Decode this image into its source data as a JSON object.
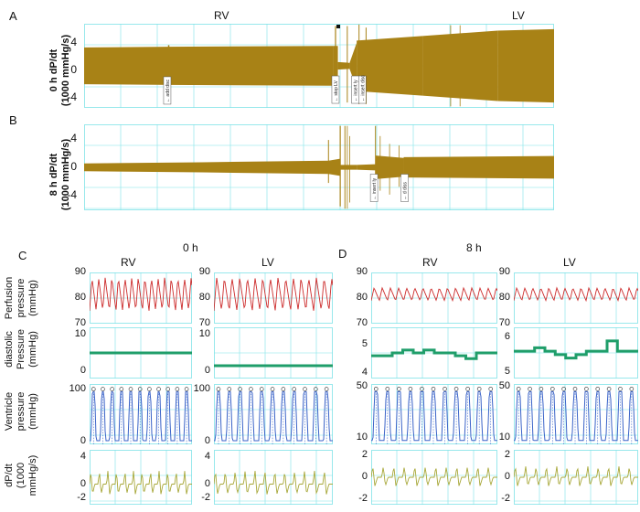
{
  "panels": {
    "A": {
      "letter": "A",
      "ylabel_lines": [
        "0 h dP/dt",
        "(1000 mmHg/s)"
      ],
      "yticks": [
        "4",
        "0",
        "-4"
      ],
      "yticks_values": [
        4,
        0,
        -4
      ],
      "ylim": [
        -5.5,
        5.5
      ],
      "rv_label": "RV",
      "lv_label": "LV",
      "event_marks": [
        "← add disc",
        "← stop LV",
        "← insert ly",
        "← insert disc"
      ]
    },
    "B": {
      "letter": "B",
      "ylabel_lines": [
        "8 h dP/dt",
        "(1000 mmHg/s)"
      ],
      "yticks": [
        "4",
        "0",
        "-4"
      ],
      "yticks_values": [
        4,
        0,
        -4
      ],
      "ylim": [
        -5.5,
        5.5
      ],
      "event_marks": [
        "← insert ly",
        "← d diss"
      ]
    },
    "C": {
      "letter": "C",
      "time_label": "0 h",
      "col_labels": [
        "RV",
        "LV"
      ]
    },
    "D": {
      "letter": "D",
      "time_label": "8 h",
      "col_labels": [
        "RV",
        "LV"
      ]
    }
  },
  "row_labels": {
    "perfusion": [
      "Perfusion",
      "pressure",
      "(mmHg)"
    ],
    "diastolic": [
      "diastolic",
      "Pressure",
      "(mmHg)"
    ],
    "ventricle": [
      "Ventricle",
      "pressure",
      "(mmHg)"
    ],
    "dpdt": [
      "dP/dt",
      "(1000",
      "mmHg/s)"
    ]
  },
  "colors": {
    "gold": "#a88216",
    "grid": "#7fe3e8",
    "red": "#cc2b2b",
    "green": "#1f9e6a",
    "blue": "#3a63c8",
    "olive": "#a8a83a"
  },
  "chart_data": [
    {
      "type": "line",
      "panel": "A",
      "title": "",
      "ylabel": "0 h dP/dt (1000 mmHg/s)",
      "ylim": [
        -5.5,
        5.5
      ],
      "series": [
        {
          "values": [
            2.5,
            2.6,
            2.5,
            2.6,
            2.5,
            0.4,
            4.8,
            5.2,
            4.9,
            5.1
          ]
        }
      ]
    },
    {
      "type": "line",
      "panel": "B",
      "title": "",
      "ylabel": "8 h dP/dt (1000 mmHg/s)",
      "ylim": [
        -5.5,
        5.5
      ],
      "series": [
        {
          "values": [
            0.5,
            0.6,
            0.8,
            1.0,
            0.3,
            3.0,
            1.0,
            1.4,
            1.5,
            1.5
          ]
        }
      ]
    },
    {
      "type": "line",
      "panel": "C",
      "column": "RV",
      "row": "Perfusion pressure (mmHg)",
      "ylim": [
        70,
        90
      ],
      "yticks": [
        90,
        80,
        70
      ],
      "series": [
        {
          "values": [
            75,
            88,
            75,
            88,
            75,
            88,
            75,
            88,
            75,
            88,
            75,
            88,
            75,
            88,
            75,
            88
          ]
        }
      ]
    },
    {
      "type": "line",
      "panel": "C",
      "column": "LV",
      "row": "Perfusion pressure (mmHg)",
      "ylim": [
        70,
        90
      ],
      "yticks": [
        90,
        80,
        70
      ],
      "series": [
        {
          "values": [
            75,
            88,
            75,
            88,
            75,
            88,
            75,
            88,
            75,
            88,
            75,
            88,
            75,
            88,
            75,
            88
          ]
        }
      ]
    },
    {
      "type": "line",
      "panel": "D",
      "column": "RV",
      "row": "Perfusion pressure (mmHg)",
      "ylim": [
        70,
        90
      ],
      "yticks": [
        90,
        80,
        70
      ],
      "series": [
        {
          "values": [
            79,
            84,
            79,
            84,
            79,
            84,
            79,
            84,
            79,
            84,
            79,
            84,
            79,
            84,
            79,
            84
          ]
        }
      ]
    },
    {
      "type": "line",
      "panel": "D",
      "column": "LV",
      "row": "Perfusion pressure (mmHg)",
      "ylim": [
        70,
        90
      ],
      "yticks": [
        90,
        80,
        70
      ],
      "series": [
        {
          "values": [
            79,
            84,
            79,
            84,
            79,
            84,
            79,
            84,
            79,
            84,
            79,
            84,
            79,
            84,
            79,
            84
          ]
        }
      ]
    },
    {
      "type": "line",
      "panel": "C",
      "column": "RV",
      "row": "diastolic Pressure (mmHg)",
      "ylim": [
        -2,
        12
      ],
      "yticks": [
        10,
        0
      ],
      "series": [
        {
          "values": [
            5,
            5,
            5,
            5,
            5,
            5,
            5,
            5
          ]
        }
      ]
    },
    {
      "type": "line",
      "panel": "C",
      "column": "LV",
      "row": "diastolic Pressure (mmHg)",
      "ylim": [
        -2,
        12
      ],
      "yticks": [
        10,
        0
      ],
      "series": [
        {
          "values": [
            1.5,
            1.5,
            1.5,
            1.5,
            1.5,
            1.5,
            1.5,
            1.5
          ]
        }
      ]
    },
    {
      "type": "line",
      "panel": "D",
      "column": "RV",
      "row": "diastolic Pressure (mmHg)",
      "ylim": [
        3.8,
        5.6
      ],
      "yticks": [
        5,
        4
      ],
      "series": [
        {
          "values": [
            4.6,
            4.6,
            4.7,
            4.8,
            4.7,
            4.8,
            4.7,
            4.7,
            4.6,
            4.5,
            4.7,
            4.7
          ]
        }
      ]
    },
    {
      "type": "line",
      "panel": "D",
      "column": "LV",
      "row": "diastolic Pressure (mmHg)",
      "ylim": [
        4.8,
        6.3
      ],
      "yticks": [
        6,
        5
      ],
      "series": [
        {
          "values": [
            5.6,
            5.6,
            5.7,
            5.6,
            5.5,
            5.4,
            5.5,
            5.6,
            5.6,
            5.9,
            5.6,
            5.6
          ]
        }
      ]
    },
    {
      "type": "line",
      "panel": "C",
      "column": "RV",
      "row": "Ventricle pressure (mmHg)",
      "ylim": [
        -5,
        110
      ],
      "yticks": [
        100,
        0
      ],
      "series": [
        {
          "values": [
            2,
            95,
            2,
            95,
            2,
            95,
            2,
            95,
            2,
            95,
            2,
            95,
            2,
            95
          ]
        }
      ]
    },
    {
      "type": "line",
      "panel": "C",
      "column": "LV",
      "row": "Ventricle pressure (mmHg)",
      "ylim": [
        -5,
        110
      ],
      "yticks": [
        100,
        0
      ],
      "series": [
        {
          "values": [
            2,
            95,
            2,
            95,
            2,
            95,
            2,
            95,
            2,
            95,
            2,
            95,
            2,
            95
          ]
        }
      ]
    },
    {
      "type": "line",
      "panel": "D",
      "column": "RV",
      "row": "Ventricle pressure (mmHg)",
      "ylim": [
        5,
        52
      ],
      "yticks": [
        50,
        10
      ],
      "series": [
        {
          "values": [
            8,
            46,
            8,
            46,
            8,
            46,
            8,
            46,
            8,
            46,
            8,
            46,
            8,
            46
          ]
        }
      ]
    },
    {
      "type": "line",
      "panel": "D",
      "column": "LV",
      "row": "Ventricle pressure (mmHg)",
      "ylim": [
        5,
        52
      ],
      "yticks": [
        50,
        10
      ],
      "series": [
        {
          "values": [
            8,
            46,
            8,
            46,
            8,
            46,
            8,
            46,
            8,
            46,
            8,
            46,
            8,
            46
          ]
        }
      ]
    },
    {
      "type": "line",
      "panel": "C",
      "column": "RV",
      "row": "dP/dt (1000 mmHg/s)",
      "ylim": [
        -3,
        5
      ],
      "yticks": [
        4,
        0,
        -2
      ],
      "series": [
        {
          "values": [
            0,
            2,
            -1.5,
            0,
            2,
            -1.5,
            0,
            2,
            -1.5
          ]
        }
      ]
    },
    {
      "type": "line",
      "panel": "C",
      "column": "LV",
      "row": "dP/dt (1000 mmHg/s)",
      "ylim": [
        -3,
        5
      ],
      "yticks": [
        4,
        0,
        -2
      ],
      "series": [
        {
          "values": [
            0,
            2,
            -1.5,
            0,
            2,
            -1.5,
            0,
            2,
            -1.5
          ]
        }
      ]
    },
    {
      "type": "line",
      "panel": "D",
      "column": "RV",
      "row": "dP/dt (1000 mmHg/s)",
      "ylim": [
        -2.5,
        2.5
      ],
      "yticks": [
        2,
        0,
        -2
      ],
      "series": [
        {
          "values": [
            0,
            1,
            -0.8,
            0,
            1,
            -0.8,
            0,
            1,
            -0.8
          ]
        }
      ]
    },
    {
      "type": "line",
      "panel": "D",
      "column": "LV",
      "row": "dP/dt (1000 mmHg/s)",
      "ylim": [
        -2.5,
        2.5
      ],
      "yticks": [
        2,
        0,
        -2
      ],
      "series": [
        {
          "values": [
            0,
            1,
            -0.8,
            0,
            1,
            -0.8,
            0,
            1,
            -0.8
          ]
        }
      ]
    }
  ]
}
